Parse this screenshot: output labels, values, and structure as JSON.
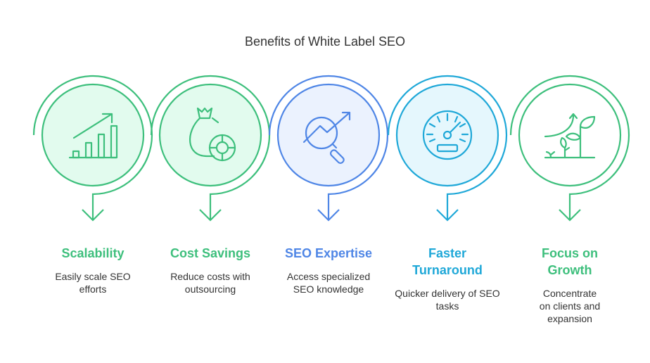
{
  "title": "Benefits of White Label SEO",
  "steps": [
    {
      "title": "Scalability",
      "desc": "Easily scale SEO efforts",
      "icon": "bar-chart-growth-icon",
      "color": "#3dbf7c",
      "fill": "#e2fbee"
    },
    {
      "title": "Cost Savings",
      "desc": "Reduce costs with outsourcing",
      "icon": "money-bag-icon",
      "color": "#3dbf7c",
      "fill": "#e2fbee"
    },
    {
      "title": "SEO Expertise",
      "desc": "Access specialized SEO knowledge",
      "icon": "magnifier-trend-icon",
      "color": "#4f86e6",
      "fill": "#ebf2fe"
    },
    {
      "title": "Faster Turnaround",
      "desc": "Quicker delivery of SEO tasks",
      "icon": "speedometer-icon",
      "color": "#1fa8d8",
      "fill": "#e5f7fd"
    },
    {
      "title": "Focus on Growth",
      "desc": "Concentrate on clients and expansion",
      "icon": "plant-growth-icon",
      "color": "#3dbf7c",
      "fill": "#ffffff"
    }
  ]
}
